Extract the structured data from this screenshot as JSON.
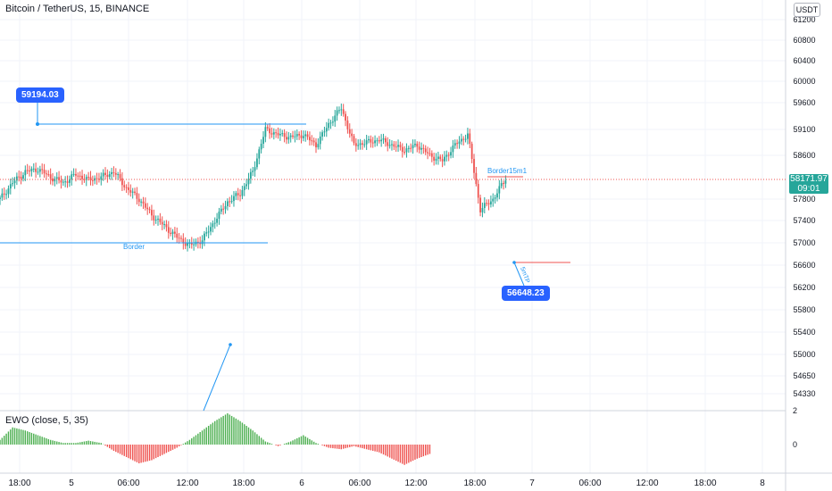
{
  "header": {
    "title": "Bitcoin / TetherUS, 15, BINANCE",
    "currency": "USDT"
  },
  "indicator": {
    "title": "EWO (close, 5, 35)",
    "axis_ticks": [
      "2",
      "0"
    ]
  },
  "price_tag": {
    "price": "58171.97",
    "countdown": "09:01"
  },
  "annotations": {
    "high_callout": "59194.03",
    "low_callout": "56648.23",
    "border_label": "Border",
    "border15_label": "Border15m1",
    "tp_label": "5mTP"
  },
  "colors": {
    "up": "#26a69a",
    "down": "#ef5350",
    "ewo_up": "#4caf50",
    "ewo_down": "#ef5350",
    "line_blue": "#2196f3",
    "callout": "#2962ff"
  },
  "chart_data": {
    "type": "candlestick",
    "title": "Bitcoin / TetherUS, 15, BINANCE",
    "y_axis_ticks": [
      61200,
      60800,
      60400,
      60000,
      59600,
      59100,
      58600,
      58171.97,
      57800,
      57400,
      57000,
      56600,
      56200,
      55800,
      55400,
      55000,
      54650,
      54330
    ],
    "y_axis_labels": [
      "61200",
      "60800",
      "60400",
      "60000",
      "59600",
      "59100",
      "58600",
      "57800",
      "57400",
      "57000",
      "56600",
      "56200",
      "55800",
      "55400",
      "55000",
      "54650",
      "54330"
    ],
    "x_axis_labels": [
      "18:00",
      "5",
      "06:00",
      "12:00",
      "18:00",
      "6",
      "06:00",
      "12:00",
      "18:00",
      "7",
      "06:00",
      "12:00",
      "18:00",
      "8"
    ],
    "price_close_path": [
      [
        0,
        57800
      ],
      [
        6,
        58100
      ],
      [
        12,
        58300
      ],
      [
        18,
        58350
      ],
      [
        24,
        58200
      ],
      [
        30,
        58100
      ],
      [
        36,
        58250
      ],
      [
        42,
        58150
      ],
      [
        48,
        58200
      ],
      [
        54,
        58300
      ],
      [
        60,
        58000
      ],
      [
        66,
        57800
      ],
      [
        72,
        57500
      ],
      [
        78,
        57300
      ],
      [
        84,
        57100
      ],
      [
        90,
        56950
      ],
      [
        96,
        57050
      ],
      [
        102,
        57400
      ],
      [
        108,
        57750
      ],
      [
        114,
        57900
      ],
      [
        120,
        58300
      ],
      [
        126,
        59100
      ],
      [
        132,
        59000
      ],
      [
        138,
        58950
      ],
      [
        144,
        59000
      ],
      [
        150,
        58800
      ],
      [
        156,
        59200
      ],
      [
        162,
        59500
      ],
      [
        168,
        58800
      ],
      [
        174,
        58850
      ],
      [
        180,
        58900
      ],
      [
        186,
        58800
      ],
      [
        192,
        58700
      ],
      [
        198,
        58800
      ],
      [
        204,
        58600
      ],
      [
        210,
        58500
      ],
      [
        216,
        58800
      ],
      [
        222,
        59000
      ],
      [
        228,
        57600
      ],
      [
        234,
        57800
      ],
      [
        240,
        58172
      ]
    ],
    "levels": [
      {
        "label": "59194.03",
        "value": 59194.03
      },
      {
        "label": "Border",
        "value": 57000
      },
      {
        "label": "Border15m1",
        "value": 58230
      },
      {
        "label": "56648.23",
        "value": 56648.23
      }
    ],
    "ewo_path": [
      [
        0,
        0.3
      ],
      [
        6,
        1.1
      ],
      [
        12,
        0.9
      ],
      [
        18,
        0.6
      ],
      [
        24,
        0.3
      ],
      [
        30,
        0.1
      ],
      [
        36,
        0.1
      ],
      [
        42,
        0.25
      ],
      [
        48,
        0.1
      ],
      [
        54,
        -0.4
      ],
      [
        60,
        -0.8
      ],
      [
        66,
        -1.2
      ],
      [
        72,
        -1.0
      ],
      [
        78,
        -0.6
      ],
      [
        84,
        -0.2
      ],
      [
        90,
        0.3
      ],
      [
        96,
        0.9
      ],
      [
        102,
        1.5
      ],
      [
        108,
        2.0
      ],
      [
        114,
        1.5
      ],
      [
        120,
        0.9
      ],
      [
        126,
        0.2
      ],
      [
        132,
        -0.1
      ],
      [
        138,
        0.2
      ],
      [
        144,
        0.6
      ],
      [
        150,
        0.1
      ],
      [
        156,
        -0.2
      ],
      [
        162,
        -0.3
      ],
      [
        168,
        -0.1
      ],
      [
        174,
        -0.3
      ],
      [
        180,
        -0.5
      ],
      [
        186,
        -0.9
      ],
      [
        192,
        -1.3
      ],
      [
        198,
        -0.9
      ],
      [
        204,
        -0.6
      ]
    ],
    "ewo_ylim": [
      -1.5,
      2.2
    ],
    "grid": true
  }
}
